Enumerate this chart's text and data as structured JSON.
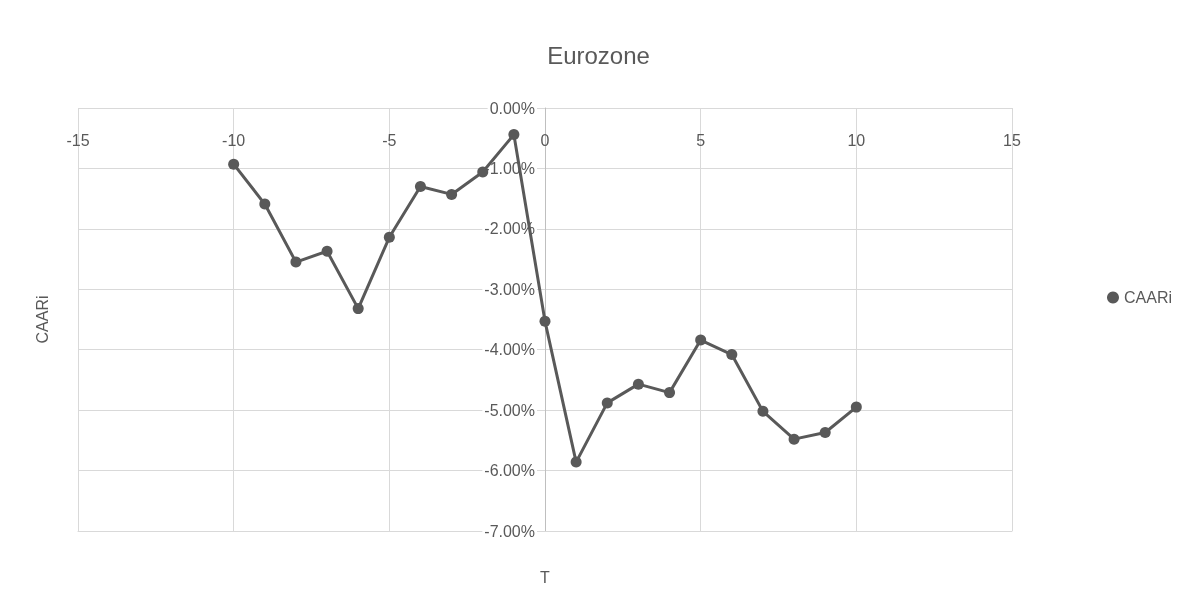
{
  "chart_data": {
    "type": "line",
    "title": "Eurozone",
    "xlabel": "T",
    "ylabel": "CAARi",
    "x": [
      -10,
      -9,
      -8,
      -7,
      -6,
      -5,
      -4,
      -3,
      -2,
      -1,
      0,
      1,
      2,
      3,
      4,
      5,
      6,
      7,
      8,
      9,
      10
    ],
    "series": [
      {
        "name": "CAARi",
        "color": "#595959",
        "values": [
          -0.93,
          -1.59,
          -2.55,
          -2.37,
          -3.32,
          -2.14,
          -1.3,
          -1.43,
          -1.06,
          -0.44,
          -3.53,
          -5.86,
          -4.88,
          -4.57,
          -4.71,
          -3.84,
          -4.08,
          -5.02,
          -5.48,
          -5.37,
          -4.95
        ]
      }
    ],
    "xlim": [
      -15,
      15
    ],
    "xticks": [
      -15,
      -10,
      -5,
      0,
      5,
      10,
      15
    ],
    "ylim": [
      -7,
      0
    ],
    "yticks": [
      {
        "value": 0,
        "label": "0.00%"
      },
      {
        "value": -1,
        "label": "-1.00%"
      },
      {
        "value": -2,
        "label": "-2.00%"
      },
      {
        "value": -3,
        "label": "-3.00%"
      },
      {
        "value": -4,
        "label": "-4.00%"
      },
      {
        "value": -5,
        "label": "-5.00%"
      },
      {
        "value": -6,
        "label": "-6.00%"
      },
      {
        "value": -7,
        "label": "-7.00%"
      }
    ],
    "grid": true,
    "legend": "right",
    "marker": "circle",
    "line_style": "solid"
  }
}
